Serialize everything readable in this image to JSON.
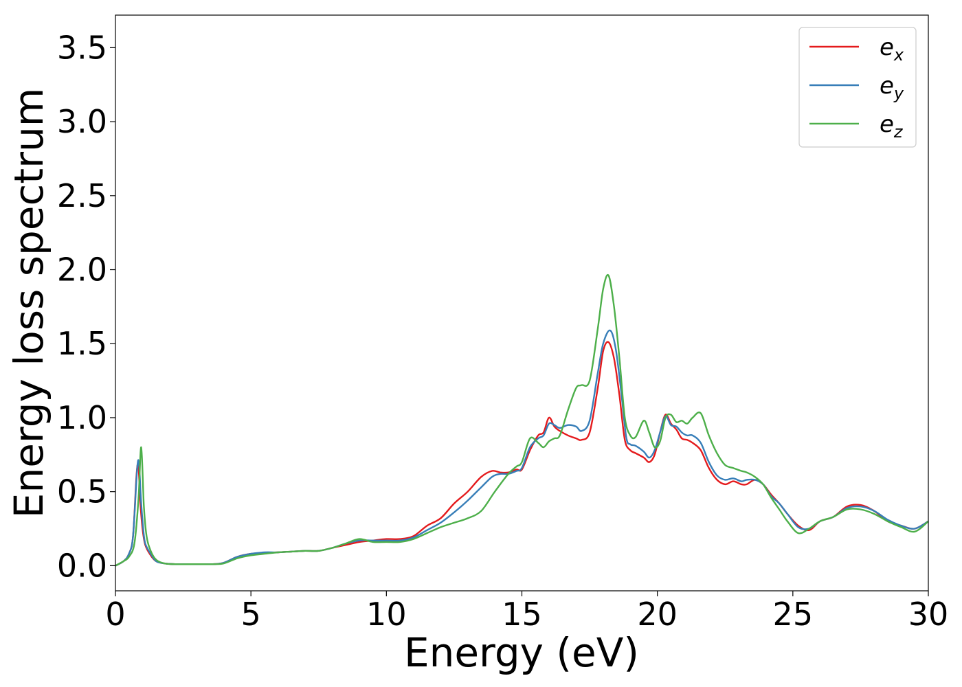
{
  "chart_data": {
    "type": "line",
    "title": "",
    "xlabel": "Energy (eV)",
    "ylabel": "Energy loss spectrum",
    "xlim": [
      0,
      30
    ],
    "ylim": [
      -0.17,
      3.72
    ],
    "xticks": [
      0,
      5,
      10,
      15,
      20,
      25,
      30
    ],
    "xtick_labels": [
      "0",
      "5",
      "10",
      "15",
      "20",
      "25",
      "30"
    ],
    "yticks": [
      0.0,
      0.5,
      1.0,
      1.5,
      2.0,
      2.5,
      3.0,
      3.5
    ],
    "ytick_labels": [
      "0.0",
      "0.5",
      "1.0",
      "1.5",
      "2.0",
      "2.5",
      "3.0",
      "3.5"
    ],
    "grid": false,
    "legend_position": "top-right",
    "series": [
      {
        "name": "e",
        "subscript": "x",
        "color": "#e41a1c",
        "x": [
          0,
          0.3,
          0.5,
          0.65,
          0.78,
          0.85,
          0.92,
          1.0,
          1.1,
          1.3,
          1.5,
          1.8,
          2.2,
          3.0,
          3.6,
          4.0,
          4.5,
          5.0,
          5.5,
          6.0,
          6.5,
          7.0,
          7.5,
          8.0,
          8.5,
          9.0,
          9.5,
          10.0,
          10.5,
          11.0,
          11.5,
          12.0,
          12.5,
          13.0,
          13.5,
          13.9,
          14.2,
          14.5,
          14.8,
          15.0,
          15.3,
          15.6,
          15.8,
          16.0,
          16.2,
          16.4,
          16.7,
          17.0,
          17.2,
          17.5,
          17.8,
          18.0,
          18.2,
          18.4,
          18.6,
          18.8,
          19.0,
          19.2,
          19.5,
          19.7,
          19.9,
          20.1,
          20.3,
          20.5,
          20.7,
          20.9,
          21.1,
          21.3,
          21.6,
          21.9,
          22.2,
          22.5,
          22.8,
          23.1,
          23.3,
          23.6,
          23.9,
          24.2,
          24.5,
          24.8,
          25.2,
          25.6,
          26.0,
          26.5,
          27.0,
          27.5,
          28.0,
          28.5,
          29.0,
          29.5,
          30.0
        ],
        "y": [
          0,
          0.03,
          0.08,
          0.2,
          0.62,
          0.67,
          0.42,
          0.25,
          0.14,
          0.07,
          0.03,
          0.015,
          0.01,
          0.01,
          0.01,
          0.02,
          0.06,
          0.08,
          0.085,
          0.09,
          0.095,
          0.1,
          0.1,
          0.12,
          0.14,
          0.16,
          0.17,
          0.18,
          0.18,
          0.2,
          0.27,
          0.32,
          0.42,
          0.5,
          0.6,
          0.64,
          0.63,
          0.63,
          0.65,
          0.65,
          0.78,
          0.88,
          0.9,
          1.0,
          0.94,
          0.91,
          0.88,
          0.86,
          0.85,
          0.9,
          1.2,
          1.45,
          1.51,
          1.4,
          1.15,
          0.85,
          0.78,
          0.76,
          0.73,
          0.7,
          0.75,
          0.9,
          1.02,
          0.96,
          0.92,
          0.86,
          0.85,
          0.83,
          0.78,
          0.66,
          0.58,
          0.55,
          0.57,
          0.55,
          0.55,
          0.58,
          0.55,
          0.48,
          0.42,
          0.35,
          0.27,
          0.24,
          0.3,
          0.33,
          0.4,
          0.41,
          0.37,
          0.3,
          0.27,
          0.25,
          0.3
        ]
      },
      {
        "name": "e",
        "subscript": "y",
        "color": "#377eb8",
        "x": [
          0,
          0.3,
          0.5,
          0.65,
          0.8,
          0.87,
          0.94,
          1.02,
          1.1,
          1.3,
          1.5,
          1.8,
          2.2,
          3.0,
          3.6,
          4.0,
          4.5,
          5.0,
          5.5,
          6.0,
          6.5,
          7.0,
          7.5,
          8.0,
          8.5,
          9.0,
          9.5,
          10.0,
          10.5,
          11.0,
          11.5,
          12.0,
          12.5,
          13.0,
          13.5,
          13.9,
          14.2,
          14.5,
          14.8,
          15.0,
          15.3,
          15.6,
          15.8,
          16.0,
          16.2,
          16.4,
          16.7,
          17.0,
          17.2,
          17.5,
          17.8,
          18.0,
          18.25,
          18.45,
          18.65,
          18.85,
          19.0,
          19.2,
          19.5,
          19.7,
          19.9,
          20.1,
          20.3,
          20.5,
          20.7,
          20.9,
          21.1,
          21.3,
          21.6,
          21.9,
          22.2,
          22.5,
          22.8,
          23.1,
          23.3,
          23.6,
          23.9,
          24.2,
          24.5,
          24.8,
          25.2,
          25.6,
          26.0,
          26.5,
          27.0,
          27.5,
          28.0,
          28.5,
          29.0,
          29.5,
          30.0
        ],
        "y": [
          0,
          0.03,
          0.08,
          0.2,
          0.65,
          0.69,
          0.45,
          0.26,
          0.15,
          0.08,
          0.03,
          0.015,
          0.01,
          0.01,
          0.01,
          0.02,
          0.06,
          0.08,
          0.09,
          0.09,
          0.095,
          0.1,
          0.1,
          0.12,
          0.15,
          0.17,
          0.17,
          0.17,
          0.17,
          0.19,
          0.24,
          0.29,
          0.36,
          0.44,
          0.53,
          0.6,
          0.62,
          0.62,
          0.64,
          0.66,
          0.8,
          0.86,
          0.88,
          0.96,
          0.95,
          0.93,
          0.95,
          0.94,
          0.91,
          0.98,
          1.3,
          1.5,
          1.59,
          1.48,
          1.2,
          0.87,
          0.82,
          0.81,
          0.77,
          0.73,
          0.78,
          0.9,
          1.01,
          0.95,
          0.94,
          0.9,
          0.88,
          0.88,
          0.83,
          0.7,
          0.61,
          0.58,
          0.59,
          0.57,
          0.58,
          0.58,
          0.55,
          0.47,
          0.42,
          0.35,
          0.26,
          0.25,
          0.3,
          0.33,
          0.39,
          0.4,
          0.37,
          0.31,
          0.27,
          0.25,
          0.3
        ]
      },
      {
        "name": "e",
        "subscript": "z",
        "color": "#4daf4a",
        "x": [
          0,
          0.3,
          0.5,
          0.7,
          0.85,
          0.95,
          1.05,
          1.15,
          1.3,
          1.5,
          1.8,
          2.2,
          3.0,
          3.6,
          4.0,
          4.5,
          5.0,
          5.5,
          6.0,
          6.5,
          7.0,
          7.5,
          8.0,
          8.5,
          9.0,
          9.5,
          10.0,
          10.5,
          11.0,
          11.5,
          12.0,
          12.5,
          13.0,
          13.5,
          14.0,
          14.5,
          14.8,
          15.0,
          15.3,
          15.6,
          15.8,
          16.0,
          16.2,
          16.4,
          16.7,
          17.0,
          17.2,
          17.5,
          17.8,
          18.0,
          18.2,
          18.4,
          18.6,
          18.8,
          19.0,
          19.2,
          19.5,
          19.7,
          19.9,
          20.1,
          20.3,
          20.5,
          20.7,
          20.9,
          21.1,
          21.3,
          21.6,
          21.9,
          22.2,
          22.5,
          22.8,
          23.1,
          23.3,
          23.6,
          23.9,
          24.2,
          24.5,
          24.8,
          25.2,
          25.6,
          26.0,
          26.5,
          27.0,
          27.5,
          28.0,
          28.5,
          29.0,
          29.5,
          30.0
        ],
        "y": [
          0,
          0.03,
          0.06,
          0.15,
          0.45,
          0.8,
          0.4,
          0.2,
          0.1,
          0.04,
          0.015,
          0.01,
          0.01,
          0.01,
          0.015,
          0.05,
          0.07,
          0.08,
          0.09,
          0.095,
          0.1,
          0.1,
          0.12,
          0.15,
          0.18,
          0.16,
          0.16,
          0.16,
          0.18,
          0.22,
          0.26,
          0.29,
          0.32,
          0.37,
          0.5,
          0.62,
          0.67,
          0.7,
          0.86,
          0.83,
          0.8,
          0.84,
          0.86,
          0.88,
          1.05,
          1.2,
          1.22,
          1.25,
          1.6,
          1.87,
          1.96,
          1.75,
          1.4,
          1.0,
          0.88,
          0.87,
          0.98,
          0.9,
          0.8,
          0.84,
          1.0,
          1.02,
          0.97,
          0.98,
          0.96,
          1.0,
          1.03,
          0.88,
          0.76,
          0.68,
          0.66,
          0.64,
          0.63,
          0.6,
          0.55,
          0.46,
          0.38,
          0.3,
          0.22,
          0.25,
          0.3,
          0.33,
          0.38,
          0.38,
          0.35,
          0.3,
          0.26,
          0.23,
          0.3
        ]
      }
    ]
  }
}
